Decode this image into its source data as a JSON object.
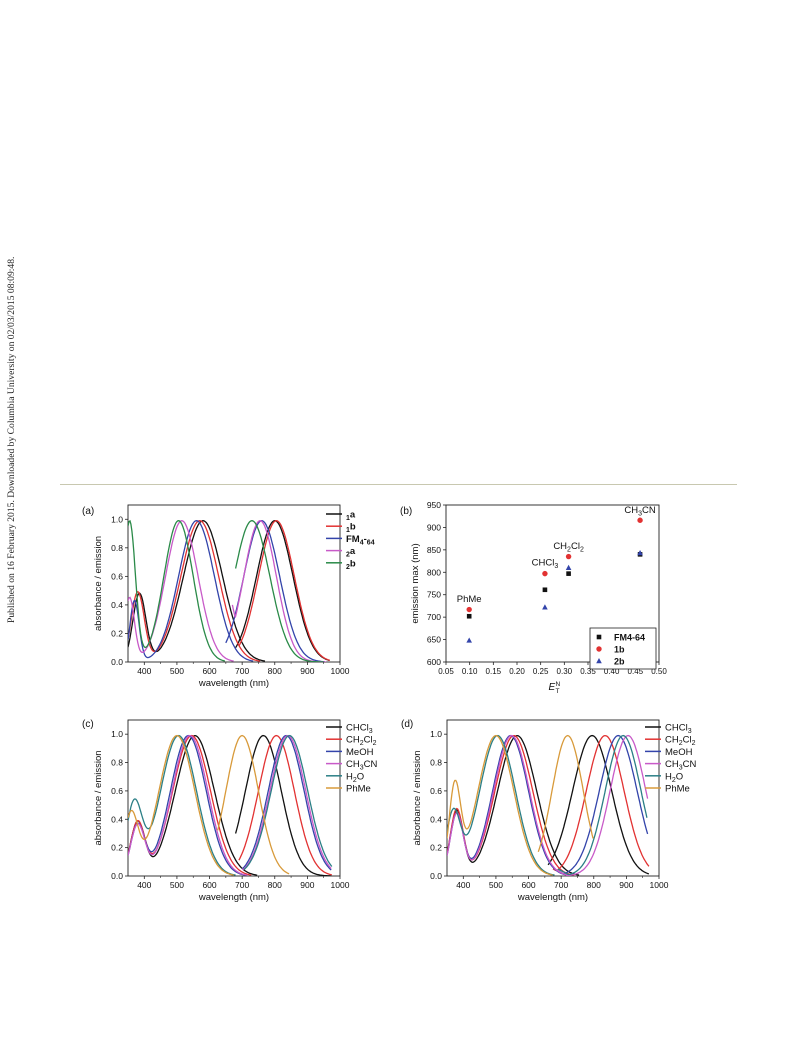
{
  "watermark": "Published on 16 February 2015. Downloaded by Columbia University on 02/03/2015 08:09:48.",
  "colors": {
    "black": "#111111",
    "red": "#e23232",
    "blue": "#3344aa",
    "magenta": "#c85ac8",
    "green": "#2a8a48",
    "teal": "#2b7f86",
    "orange": "#d89a3a"
  },
  "chart_data": [
    {
      "panel": "(a)",
      "type": "line",
      "xlabel": "wavelength (nm)",
      "ylabel": "absorbance / emission",
      "xlim": [
        350,
        1000
      ],
      "ylim": [
        0,
        1.1
      ],
      "xticks": [
        "400",
        "500",
        "600",
        "700",
        "800",
        "900",
        "1000"
      ],
      "yticks": [
        "0.0",
        "0.2",
        "0.4",
        "0.6",
        "0.8",
        "1.0"
      ],
      "legend_position": "top-right",
      "series": [
        {
          "name": "1a",
          "color": "#111111",
          "bold": true,
          "shoulder": [
            385,
            0.48,
            20
          ],
          "abs": [
            440,
            580,
            60,
            0.13,
            0.99
          ],
          "em": [
            680,
            800,
            56,
            0.1,
            970,
            0.99
          ]
        },
        {
          "name": "1b",
          "color": "#e23232",
          "bold": true,
          "shoulder": [
            380,
            0.49,
            20
          ],
          "abs": [
            440,
            570,
            58,
            0.13,
            0.99
          ],
          "em": [
            690,
            805,
            55,
            0.1,
            970,
            0.99
          ]
        },
        {
          "name": "FM4-64",
          "color": "#3344aa",
          "bold": true,
          "shoulder": [
            370,
            0.43,
            14
          ],
          "abs": [
            410,
            560,
            55,
            0.1,
            0.99
          ],
          "em": [
            650,
            760,
            55,
            0.0,
            955,
            0.99
          ]
        },
        {
          "name": "2a",
          "color": "#c85ac8",
          "bold": true,
          "shoulder": [
            355,
            0.45,
            15
          ],
          "abs": [
            400,
            515,
            50,
            0.4,
            0.99
          ],
          "em": [
            670,
            755,
            50,
            0.4,
            960,
            0.99
          ]
        },
        {
          "name": "2b",
          "color": "#2a8a48",
          "bold": true,
          "shoulder": [
            355,
            0.99,
            18
          ],
          "abs": [
            425,
            505,
            45,
            0.48,
            0.99
          ],
          "em": [
            680,
            730,
            55,
            0.65,
            950,
            0.99
          ]
        }
      ]
    },
    {
      "panel": "(b)",
      "type": "scatter",
      "xlabel_main": "E",
      "xlabel_sup": "N",
      "xlabel_sub": "T",
      "ylabel": "emission max (nm)",
      "xlim": [
        0.05,
        0.5
      ],
      "ylim": [
        600,
        950
      ],
      "xticks": [
        "0.05",
        "0.10",
        "0.15",
        "0.20",
        "0.25",
        "0.30",
        "0.35",
        "0.40",
        "0.45",
        "0.50"
      ],
      "yticks": [
        "600",
        "650",
        "700",
        "750",
        "800",
        "850",
        "900",
        "950"
      ],
      "legend_position": "bottom-right",
      "series": [
        {
          "name": "FM4-64",
          "marker": "square",
          "color": "#111111",
          "x": [
            0.099,
            0.259,
            0.309,
            0.46
          ],
          "y": [
            702,
            761,
            797,
            840
          ]
        },
        {
          "name": "1b",
          "marker": "circle",
          "color": "#e23232",
          "x": [
            0.099,
            0.259,
            0.309,
            0.46
          ],
          "y": [
            717,
            797,
            835,
            916
          ]
        },
        {
          "name": "2b",
          "marker": "triangle",
          "color": "#3344aa",
          "x": [
            0.099,
            0.259,
            0.309,
            0.46
          ],
          "y": [
            648,
            722,
            810,
            843
          ]
        }
      ],
      "annotations": [
        {
          "label": "PhMe",
          "x": 0.099,
          "y": 734
        },
        {
          "label": "CHCl3",
          "x": 0.259,
          "y": 815
        },
        {
          "label": "CH2Cl2",
          "x": 0.309,
          "y": 852
        },
        {
          "label": "CH3CN",
          "x": 0.46,
          "y": 932
        }
      ]
    },
    {
      "panel": "(c)",
      "type": "line",
      "xlabel": "wavelength (nm)",
      "ylabel": "absorbance / emission",
      "xlim": [
        350,
        1000
      ],
      "ylim": [
        0,
        1.1
      ],
      "xticks": [
        "400",
        "500",
        "600",
        "700",
        "800",
        "900",
        "1000"
      ],
      "yticks": [
        "0.0",
        "0.2",
        "0.4",
        "0.6",
        "0.8",
        "1.0"
      ],
      "legend_position": "top-right",
      "series": [
        {
          "name": "CHCl3",
          "color": "#111111",
          "shoulder": [
            380,
            0.38,
            22
          ],
          "abs": [
            430,
            555,
            60,
            0.1,
            0.99
          ],
          "em": [
            680,
            765,
            55,
            0.05,
            975,
            0.99
          ]
        },
        {
          "name": "CH2Cl2",
          "color": "#e23232",
          "shoulder": [
            380,
            0.38,
            22
          ],
          "abs": [
            430,
            545,
            58,
            0.1,
            0.99
          ],
          "em": [
            690,
            805,
            55,
            0.05,
            975,
            0.99
          ]
        },
        {
          "name": "MeOH",
          "color": "#3344aa",
          "shoulder": [
            380,
            0.36,
            22
          ],
          "abs": [
            430,
            535,
            55,
            0.1,
            0.99
          ],
          "em": [
            700,
            835,
            55,
            0.05,
            975,
            0.99
          ]
        },
        {
          "name": "CH3CN",
          "color": "#c85ac8",
          "shoulder": [
            380,
            0.36,
            22
          ],
          "abs": [
            430,
            540,
            55,
            0.1,
            0.99
          ],
          "em": [
            700,
            840,
            55,
            0.05,
            975,
            0.99
          ]
        },
        {
          "name": "H2O",
          "color": "#2b7f86",
          "shoulder": [
            370,
            0.52,
            25
          ],
          "abs": [
            430,
            505,
            55,
            0.2,
            0.99
          ],
          "em": [
            705,
            845,
            56,
            0.05,
            975,
            0.99
          ]
        },
        {
          "name": "PhMe",
          "color": "#d89a3a",
          "shoulder": [
            360,
            0.44,
            22
          ],
          "abs": [
            430,
            500,
            55,
            0.2,
            0.99
          ],
          "em": [
            625,
            700,
            50,
            0.0,
            845,
            0.99
          ]
        }
      ]
    },
    {
      "panel": "(d)",
      "type": "line",
      "xlabel": "wavelength (nm)",
      "ylabel": "absorbance / emission",
      "xlim": [
        350,
        1000
      ],
      "ylim": [
        0,
        1.1
      ],
      "xticks": [
        "400",
        "500",
        "600",
        "700",
        "800",
        "900",
        "1000"
      ],
      "yticks": [
        "0.0",
        "0.2",
        "0.4",
        "0.6",
        "0.8",
        "1.0"
      ],
      "legend_position": "top-right",
      "series": [
        {
          "name": "CHCl3",
          "color": "#111111",
          "shoulder": [
            380,
            0.46,
            20
          ],
          "abs": [
            430,
            565,
            60,
            0.15,
            0.99
          ],
          "em": [
            660,
            795,
            60,
            0.05,
            970,
            0.99
          ]
        },
        {
          "name": "CH2Cl2",
          "color": "#e23232",
          "shoulder": [
            380,
            0.47,
            20
          ],
          "abs": [
            430,
            555,
            58,
            0.15,
            0.99
          ],
          "em": [
            675,
            835,
            58,
            0.05,
            970,
            0.99
          ]
        },
        {
          "name": "MeOH",
          "color": "#3344aa",
          "shoulder": [
            380,
            0.44,
            20
          ],
          "abs": [
            430,
            545,
            55,
            0.15,
            0.99
          ],
          "em": [
            680,
            875,
            58,
            0.05,
            965,
            0.99
          ]
        },
        {
          "name": "CH3CN",
          "color": "#c85ac8",
          "shoulder": [
            380,
            0.44,
            20
          ],
          "abs": [
            430,
            548,
            55,
            0.15,
            0.99
          ],
          "em": [
            680,
            905,
            55,
            0.05,
            965,
            0.99
          ]
        },
        {
          "name": "H2O",
          "color": "#2b7f86",
          "shoulder": [
            370,
            0.45,
            22
          ],
          "abs": [
            430,
            505,
            55,
            0.25,
            0.99
          ],
          "em": [
            690,
            890,
            55,
            0.05,
            965,
            0.99
          ]
        },
        {
          "name": "PhMe",
          "color": "#d89a3a",
          "shoulder": [
            375,
            0.65,
            18
          ],
          "abs": [
            430,
            500,
            55,
            0.4,
            0.99
          ],
          "em": [
            630,
            720,
            48,
            0.0,
            800,
            0.99
          ]
        }
      ]
    }
  ]
}
